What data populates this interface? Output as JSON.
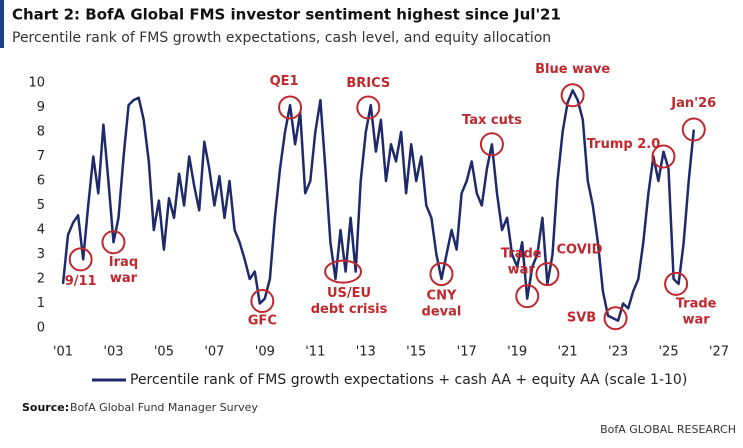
{
  "chart_data": {
    "type": "line",
    "title": "Chart 2: BofA Global FMS investor sentiment highest since Jul'21",
    "subtitle": "Percentile rank of FMS growth expectations, cash level, and equity allocation",
    "source_label": "Source:",
    "source": "BofA Global Fund Manager Survey",
    "brand": "BofA GLOBAL RESEARCH",
    "xlim": [
      2001,
      2027
    ],
    "ylim": [
      0,
      10
    ],
    "xticks": [
      {
        "value": 2001,
        "label": "'01"
      },
      {
        "value": 2003,
        "label": "'03"
      },
      {
        "value": 2005,
        "label": "'05"
      },
      {
        "value": 2007,
        "label": "'07"
      },
      {
        "value": 2009,
        "label": "'09"
      },
      {
        "value": 2011,
        "label": "'11"
      },
      {
        "value": 2013,
        "label": "'13"
      },
      {
        "value": 2015,
        "label": "'15"
      },
      {
        "value": 2017,
        "label": "'17"
      },
      {
        "value": 2019,
        "label": "'19"
      },
      {
        "value": 2021,
        "label": "'21"
      },
      {
        "value": 2023,
        "label": "'23"
      },
      {
        "value": 2025,
        "label": "'25"
      },
      {
        "value": 2027,
        "label": "'27"
      }
    ],
    "yticks": [
      0,
      1,
      2,
      3,
      4,
      5,
      6,
      7,
      8,
      9,
      10
    ],
    "legend": "bottom",
    "x": [
      2001.0,
      2001.2,
      2001.4,
      2001.6,
      2001.8,
      2002.0,
      2002.2,
      2002.4,
      2002.6,
      2002.8,
      2003.0,
      2003.2,
      2003.4,
      2003.6,
      2003.8,
      2004.0,
      2004.2,
      2004.4,
      2004.6,
      2004.8,
      2005.0,
      2005.2,
      2005.4,
      2005.6,
      2005.8,
      2006.0,
      2006.2,
      2006.4,
      2006.6,
      2006.8,
      2007.0,
      2007.2,
      2007.4,
      2007.6,
      2007.8,
      2008.0,
      2008.2,
      2008.4,
      2008.6,
      2008.8,
      2009.0,
      2009.2,
      2009.4,
      2009.6,
      2009.8,
      2010.0,
      2010.2,
      2010.4,
      2010.6,
      2010.8,
      2011.0,
      2011.2,
      2011.4,
      2011.6,
      2011.8,
      2012.0,
      2012.2,
      2012.4,
      2012.6,
      2012.8,
      2013.0,
      2013.2,
      2013.4,
      2013.6,
      2013.8,
      2014.0,
      2014.2,
      2014.4,
      2014.6,
      2014.8,
      2015.0,
      2015.2,
      2015.4,
      2015.6,
      2015.8,
      2016.0,
      2016.2,
      2016.4,
      2016.6,
      2016.8,
      2017.0,
      2017.2,
      2017.4,
      2017.6,
      2017.8,
      2018.0,
      2018.2,
      2018.4,
      2018.6,
      2018.8,
      2019.0,
      2019.2,
      2019.4,
      2019.6,
      2019.8,
      2020.0,
      2020.2,
      2020.4,
      2020.6,
      2020.8,
      2021.0,
      2021.2,
      2021.4,
      2021.6,
      2021.8,
      2022.0,
      2022.2,
      2022.4,
      2022.6,
      2022.8,
      2023.0,
      2023.2,
      2023.4,
      2023.6,
      2023.8,
      2024.0,
      2024.2,
      2024.4,
      2024.6,
      2024.8,
      2025.0,
      2025.2,
      2025.4,
      2025.6,
      2025.8,
      2026.0
    ],
    "series": [
      {
        "name": "Percentile rank of FMS growth expectations + cash AA + equity AA (scale 1-10)",
        "color": "#1f2a6b",
        "values": [
          1.8,
          3.8,
          4.3,
          4.6,
          2.8,
          5.0,
          7.0,
          5.5,
          8.3,
          6.0,
          3.5,
          4.5,
          7.0,
          9.1,
          9.3,
          9.4,
          8.5,
          6.8,
          4.0,
          5.2,
          3.2,
          5.3,
          4.5,
          6.3,
          5.0,
          7.0,
          5.8,
          4.8,
          7.6,
          6.5,
          5.0,
          6.2,
          4.5,
          6.0,
          4.0,
          3.5,
          2.8,
          2.0,
          2.3,
          1.0,
          1.2,
          2.0,
          4.5,
          6.5,
          8.0,
          9.1,
          7.5,
          8.8,
          5.5,
          6.0,
          8.0,
          9.3,
          6.5,
          3.5,
          2.0,
          4.0,
          2.3,
          4.5,
          2.3,
          6.0,
          8.0,
          9.1,
          7.2,
          8.5,
          6.0,
          7.5,
          6.8,
          8.0,
          5.5,
          7.5,
          6.0,
          7.0,
          5.0,
          4.5,
          3.0,
          2.0,
          3.0,
          4.0,
          3.2,
          5.5,
          6.0,
          6.8,
          5.5,
          5.0,
          6.5,
          7.5,
          5.5,
          4.0,
          4.5,
          3.0,
          2.5,
          3.5,
          1.2,
          2.5,
          3.0,
          4.5,
          1.8,
          3.0,
          6.0,
          8.0,
          9.2,
          9.7,
          9.3,
          8.5,
          6.0,
          5.0,
          3.5,
          1.5,
          0.5,
          0.4,
          0.3,
          1.0,
          0.8,
          1.5,
          2.0,
          3.5,
          5.5,
          7.0,
          6.0,
          7.2,
          6.5,
          2.0,
          1.8,
          3.5,
          6.0,
          8.1
        ]
      }
    ],
    "annotations": [
      {
        "lines": [
          "9/11"
        ],
        "x": 2001.7,
        "y": 2.8
      },
      {
        "lines": [
          "Iraq",
          "war"
        ],
        "x": 2003.0,
        "y": 3.5
      },
      {
        "lines": [
          "GFC"
        ],
        "x": 2008.9,
        "y": 1.1
      },
      {
        "lines": [
          "QE1"
        ],
        "x": 2010.0,
        "y": 9.0
      },
      {
        "lines": [
          "US/EU",
          "debt crisis"
        ],
        "x": 2012.1,
        "y": 2.3
      },
      {
        "lines": [
          "BRICS"
        ],
        "x": 2013.1,
        "y": 9.0
      },
      {
        "lines": [
          "CNY",
          "deval"
        ],
        "x": 2016.0,
        "y": 2.2
      },
      {
        "lines": [
          "Tax cuts"
        ],
        "x": 2018.0,
        "y": 7.5
      },
      {
        "lines": [
          "Trade",
          "war"
        ],
        "x": 2019.4,
        "y": 1.3
      },
      {
        "lines": [
          "COVID"
        ],
        "x": 2020.2,
        "y": 2.2
      },
      {
        "lines": [
          "Blue wave"
        ],
        "x": 2021.2,
        "y": 9.5
      },
      {
        "lines": [
          "SVB"
        ],
        "x": 2022.9,
        "y": 0.4
      },
      {
        "lines": [
          "Trump 2.0"
        ],
        "x": 2024.8,
        "y": 7.0
      },
      {
        "lines": [
          "Jan'26"
        ],
        "x": 2026.0,
        "y": 8.1
      },
      {
        "lines": [
          "Trade",
          "war"
        ],
        "x": 2025.3,
        "y": 1.8
      }
    ]
  }
}
